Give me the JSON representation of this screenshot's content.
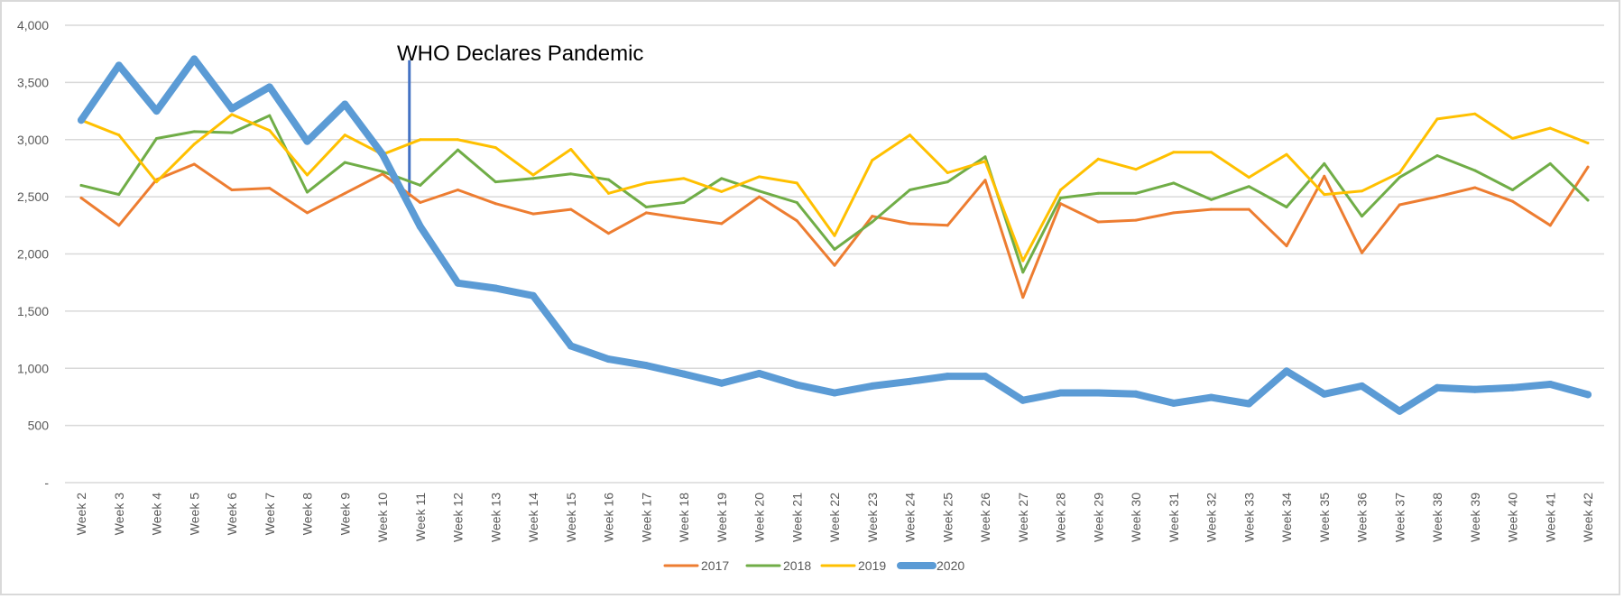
{
  "chart_data": {
    "type": "line",
    "title": "",
    "xlabel": "",
    "ylabel": "",
    "ylim": [
      0,
      4000
    ],
    "yticks": [
      {
        "value": 0,
        "label": "-"
      },
      {
        "value": 500,
        "label": "500"
      },
      {
        "value": 1000,
        "label": "1,000"
      },
      {
        "value": 1500,
        "label": "1,500"
      },
      {
        "value": 2000,
        "label": "2,000"
      },
      {
        "value": 2500,
        "label": "2,500"
      },
      {
        "value": 3000,
        "label": "3,000"
      },
      {
        "value": 3500,
        "label": "3,500"
      },
      {
        "value": 4000,
        "label": "4,000"
      }
    ],
    "grid": true,
    "legend_position": "bottom-center",
    "categories": [
      "Week 2",
      "Week 3",
      "Week 4",
      "Week 5",
      "Week 6",
      "Week 7",
      "Week 8",
      "Week 9",
      "Week 10",
      "Week 11",
      "Week 12",
      "Week 13",
      "Week 14",
      "Week 15",
      "Week 16",
      "Week 17",
      "Week 18",
      "Week 19",
      "Week 20",
      "Week 21",
      "Week 22",
      "Week 23",
      "Week 24",
      "Week 25",
      "Week 26",
      "Week 27",
      "Week 28",
      "Week 29",
      "Week 30",
      "Week 31",
      "Week 32",
      "Week 33",
      "Week 34",
      "Week 35",
      "Week 36",
      "Week 37",
      "Week 38",
      "Week 39",
      "Week 40",
      "Week 41",
      "Week 42"
    ],
    "series": [
      {
        "name": "2017",
        "color": "#ed7d31",
        "values": [
          2490,
          2250,
          2650,
          2785,
          2560,
          2575,
          2360,
          2530,
          2700,
          2450,
          2560,
          2440,
          2350,
          2390,
          2180,
          2360,
          2310,
          2265,
          2500,
          2290,
          1900,
          2330,
          2265,
          2250,
          2645,
          1620,
          2440,
          2280,
          2295,
          2360,
          2390,
          2390,
          2070,
          2680,
          2010,
          2430,
          2500,
          2580,
          2460,
          2250,
          2760
        ]
      },
      {
        "name": "2018",
        "color": "#70ad47",
        "values": [
          2600,
          2520,
          3010,
          3070,
          3060,
          3210,
          2540,
          2800,
          2720,
          2600,
          2910,
          2630,
          2660,
          2700,
          2650,
          2410,
          2450,
          2660,
          2550,
          2450,
          2040,
          2280,
          2560,
          2630,
          2850,
          1840,
          2490,
          2530,
          2530,
          2620,
          2475,
          2590,
          2410,
          2790,
          2330,
          2670,
          2860,
          2730,
          2560,
          2790,
          2470
        ]
      },
      {
        "name": "2019",
        "color": "#ffc000",
        "values": [
          3170,
          3040,
          2630,
          2960,
          3220,
          3080,
          2690,
          3040,
          2870,
          3000,
          3000,
          2930,
          2690,
          2915,
          2530,
          2620,
          2660,
          2545,
          2675,
          2620,
          2160,
          2820,
          3040,
          2710,
          2810,
          1940,
          2560,
          2830,
          2740,
          2890,
          2890,
          2670,
          2870,
          2520,
          2550,
          2710,
          3180,
          3225,
          3010,
          3100,
          2970
        ]
      },
      {
        "name": "2020",
        "color": "#5b9bd5",
        "values": [
          3170,
          3650,
          3250,
          3705,
          3270,
          3460,
          2985,
          3310,
          2870,
          2240,
          1745,
          1700,
          1635,
          1195,
          1080,
          1025,
          950,
          870,
          955,
          855,
          785,
          845,
          885,
          930,
          930,
          720,
          785,
          785,
          775,
          695,
          745,
          690,
          975,
          775,
          845,
          625,
          830,
          815,
          830,
          860,
          770
        ]
      }
    ],
    "annotations": [
      {
        "text": "WHO Declares Pandemic",
        "x_category": "Week 11",
        "from_value": 2500,
        "to_value": 3600,
        "color": "#4472c4"
      }
    ]
  }
}
